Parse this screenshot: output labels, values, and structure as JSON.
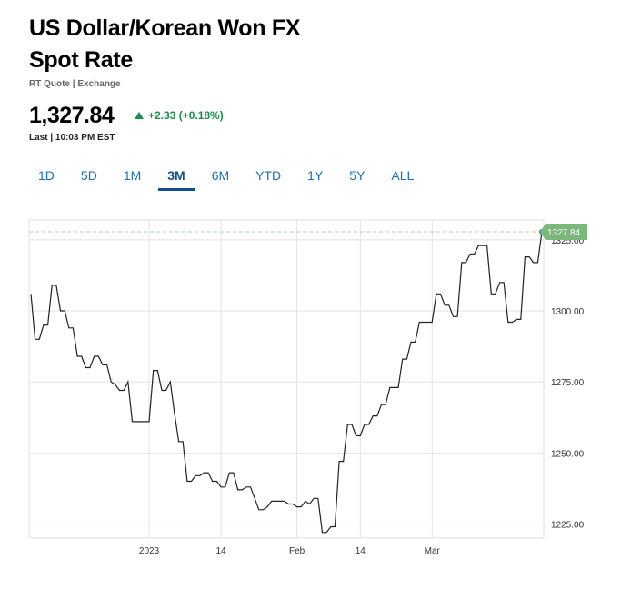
{
  "header": {
    "title_line1": "US Dollar/Korean Won FX",
    "title_line2": "Spot Rate",
    "subtitle": "RT Quote | Exchange",
    "price": "1,327.84",
    "change": "+2.33 (+0.18%)",
    "last": "Last | 10:03 PM EST"
  },
  "colors": {
    "up": "#1a8f4a",
    "tab": "#1a6fb5",
    "tab_active": "#154f8a",
    "price_label_bg": "#7ab87a",
    "dashed_line": "#a9d6a9"
  },
  "tabs": [
    "1D",
    "5D",
    "1M",
    "3M",
    "6M",
    "YTD",
    "1Y",
    "5Y",
    "ALL"
  ],
  "active_tab": "3M",
  "chart_data": {
    "type": "line",
    "ylim": [
      1220,
      1332
    ],
    "yticks": [
      1225,
      1250,
      1275,
      1300,
      1325
    ],
    "ytick_labels": [
      "1225.00",
      "1250.00",
      "1275.00",
      "1300.00",
      "1325.00"
    ],
    "xticks": [
      {
        "index": 28,
        "label": "2023"
      },
      {
        "index": 45,
        "label": "14"
      },
      {
        "index": 63,
        "label": "Feb"
      },
      {
        "index": 78,
        "label": "14"
      },
      {
        "index": 95,
        "label": "Mar"
      }
    ],
    "last_value_label": "1327.84",
    "last_value": 1327.84,
    "grid": true,
    "values": [
      1306,
      1290,
      1290,
      1295,
      1295,
      1309,
      1309,
      1300,
      1300,
      1294,
      1294,
      1284,
      1284,
      1280,
      1280,
      1284,
      1284,
      1281,
      1281,
      1275,
      1274,
      1272,
      1272,
      1275,
      1261,
      1261,
      1261,
      1261,
      1261,
      1279,
      1279,
      1272,
      1272,
      1275,
      1264,
      1254,
      1254,
      1240,
      1240,
      1242,
      1242,
      1243,
      1243,
      1240,
      1240,
      1238,
      1238,
      1243,
      1243,
      1237,
      1237,
      1238,
      1238,
      1234,
      1230,
      1230,
      1231,
      1233,
      1233,
      1233,
      1233,
      1232,
      1232,
      1231,
      1231,
      1233,
      1232,
      1234,
      1234,
      1222,
      1222,
      1224,
      1224,
      1247,
      1247,
      1260,
      1260,
      1256,
      1256,
      1260,
      1260,
      1263,
      1263,
      1267,
      1267,
      1273,
      1273,
      1273,
      1283,
      1283,
      1289,
      1289,
      1296,
      1296,
      1296,
      1296,
      1306,
      1306,
      1302,
      1302,
      1298,
      1298,
      1317,
      1317,
      1320,
      1320,
      1323,
      1323,
      1323,
      1306,
      1306,
      1310,
      1310,
      1296,
      1296,
      1297,
      1297,
      1319,
      1319,
      1317,
      1317,
      1327.84
    ]
  }
}
